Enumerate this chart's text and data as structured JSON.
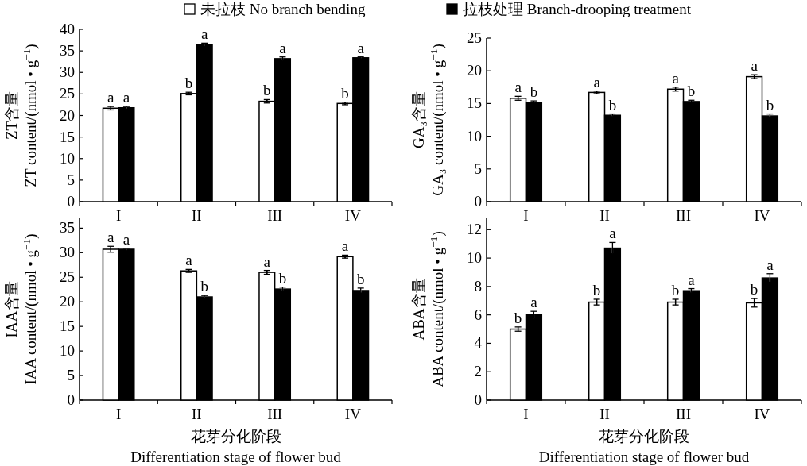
{
  "chart_data": [
    {
      "type": "bar",
      "ylabel": "ZT含量\nZT content/(nmol • g$^{−1}$)",
      "categories": [
        "I",
        "II",
        "III",
        "IV"
      ],
      "ylim": [
        0,
        40
      ],
      "yticks": [
        0,
        5,
        10,
        15,
        20,
        25,
        30,
        35,
        40
      ],
      "grid": false,
      "legend": "top",
      "series": [
        {
          "name": "未拉枝 No branch bending",
          "color": "#ffffff",
          "values": [
            21.7,
            25.1,
            23.3,
            22.8
          ],
          "errors": [
            0.4,
            0.3,
            0.4,
            0.3
          ],
          "value_labels": [
            "a",
            "b",
            "b",
            "b"
          ]
        },
        {
          "name": "拉枝处理 Branch-drooping treatment",
          "color": "#000000",
          "values": [
            21.8,
            36.4,
            33.2,
            33.4
          ],
          "errors": [
            0.3,
            0.4,
            0.4,
            0.2
          ],
          "value_labels": [
            "a",
            "a",
            "a",
            "a"
          ]
        }
      ]
    },
    {
      "type": "bar",
      "ylabel": "GA₃含量\nGA₃ content/(nmol • g$^{−1}$)",
      "categories": [
        "I",
        "II",
        "III",
        "IV"
      ],
      "ylim": [
        0,
        25
      ],
      "yticks": [
        0,
        5,
        10,
        15,
        20,
        25
      ],
      "grid": false,
      "series": [
        {
          "color": "#ffffff",
          "values": [
            15.8,
            16.7,
            17.2,
            19.1
          ],
          "errors": [
            0.3,
            0.2,
            0.3,
            0.3
          ],
          "value_labels": [
            "a",
            "a",
            "a",
            "a"
          ]
        },
        {
          "color": "#000000",
          "values": [
            15.2,
            13.2,
            15.3,
            13.1
          ],
          "errors": [
            0.2,
            0.2,
            0.2,
            0.3
          ],
          "value_labels": [
            "b",
            "b",
            "b",
            "b"
          ]
        }
      ]
    },
    {
      "type": "bar",
      "ylabel": "IAA含量\nIAA content/(nmol • g$^{−1}$)",
      "xlabel": "花芽分化阶段\nDifferentiation stage of flower bud",
      "categories": [
        "I",
        "II",
        "III",
        "IV"
      ],
      "ylim": [
        0,
        37
      ],
      "yticks": [
        0,
        5,
        10,
        15,
        20,
        25,
        30,
        35
      ],
      "grid": false,
      "series": [
        {
          "color": "#ffffff",
          "values": [
            30.7,
            26.3,
            26.0,
            29.2
          ],
          "errors": [
            0.6,
            0.3,
            0.4,
            0.3
          ],
          "value_labels": [
            "a",
            "a",
            "a",
            "a"
          ]
        },
        {
          "color": "#000000",
          "values": [
            30.7,
            21.0,
            22.6,
            22.3
          ],
          "errors": [
            0.2,
            0.3,
            0.4,
            0.5
          ],
          "value_labels": [
            "a",
            "b",
            "b",
            "b"
          ]
        }
      ]
    },
    {
      "type": "bar",
      "ylabel": "ABA含量\nABA content/(nmol • g$^{−1}$)",
      "xlabel": "花芽分化阶段\nDifferentiation stage of flower bud",
      "categories": [
        "I",
        "II",
        "III",
        "IV"
      ],
      "ylim": [
        0,
        12.8
      ],
      "yticks": [
        0,
        2,
        4,
        6,
        8,
        10,
        12
      ],
      "grid": false,
      "series": [
        {
          "color": "#ffffff",
          "values": [
            5.0,
            6.9,
            6.9,
            6.85
          ],
          "errors": [
            0.15,
            0.2,
            0.2,
            0.3
          ],
          "value_labels": [
            "b",
            "b",
            "b",
            "b"
          ]
        },
        {
          "color": "#000000",
          "values": [
            6.0,
            10.7,
            7.7,
            8.6
          ],
          "errors": [
            0.25,
            0.4,
            0.15,
            0.3
          ],
          "value_labels": [
            "a",
            "a",
            "a",
            "a"
          ]
        }
      ]
    }
  ]
}
